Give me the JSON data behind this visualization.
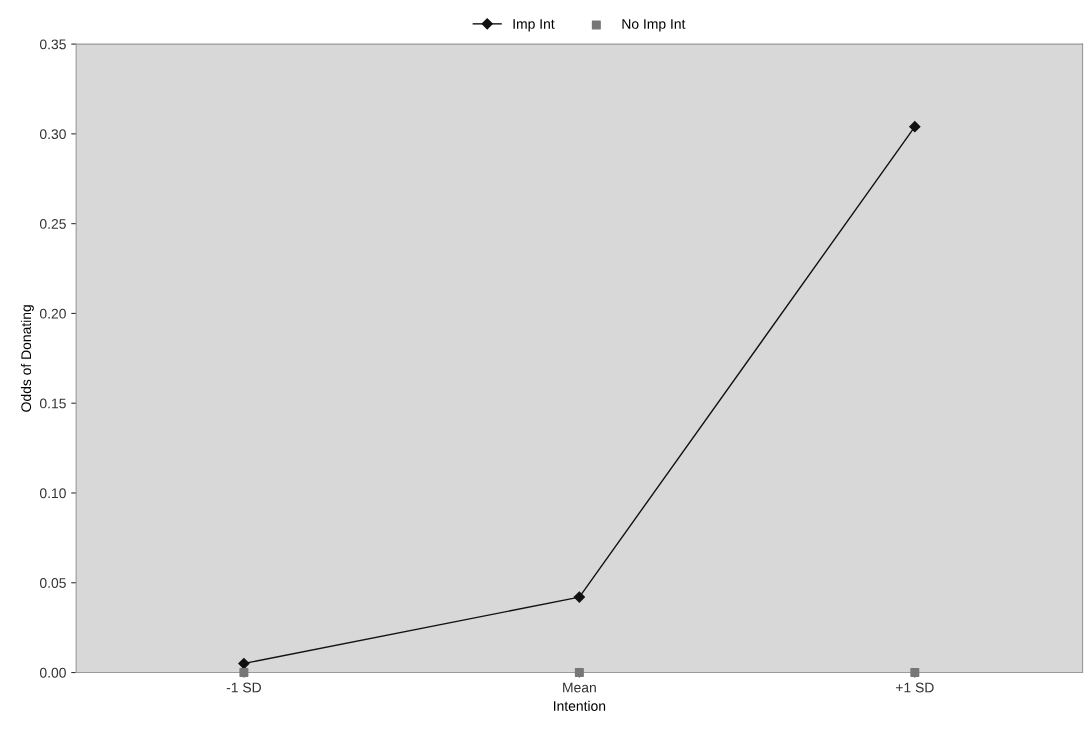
{
  "chart_data": {
    "type": "line",
    "categories": [
      "-1 SD",
      "Mean",
      "+1 SD"
    ],
    "xlabel": "Intention",
    "ylabel": "Odds of Donating",
    "ylim": [
      0,
      0.35
    ],
    "yticks": [
      {
        "value": 0,
        "label": "0.00"
      },
      {
        "value": 0.05,
        "label": "0.05"
      },
      {
        "value": 0.1,
        "label": "0.10"
      },
      {
        "value": 0.15,
        "label": "0.15"
      },
      {
        "value": 0.2,
        "label": "0.20"
      },
      {
        "value": 0.25,
        "label": "0.25"
      },
      {
        "value": 0.3,
        "label": "0.30"
      },
      {
        "value": 0.35,
        "label": "0.35"
      }
    ],
    "grid": false,
    "legend": "top",
    "series": [
      {
        "name": "Imp Int",
        "marker": "diamond",
        "color": "#111111",
        "values": [
          0.005,
          0.042,
          0.304
        ]
      },
      {
        "name": "No Imp Int",
        "type": "scatter",
        "marker": "square",
        "color": "#777777",
        "values": [
          0.0,
          0.0,
          0.0
        ]
      }
    ]
  }
}
